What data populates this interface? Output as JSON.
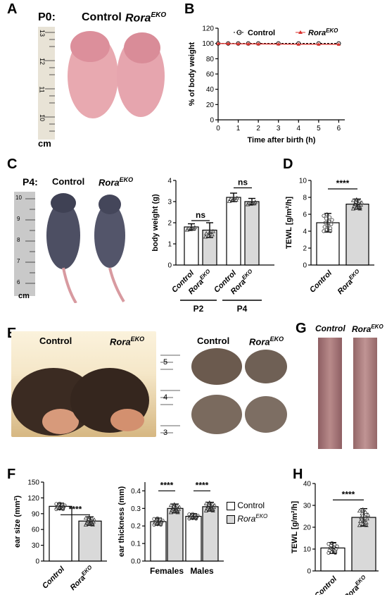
{
  "panel_labels": {
    "A": "A",
    "B": "B",
    "C": "C",
    "D": "D",
    "E": "E",
    "F": "F",
    "G": "G",
    "H": "H"
  },
  "panelA": {
    "stage": "P0:",
    "control": "Control",
    "rora": "Rora",
    "rora_sup": "EKO",
    "ruler_unit": "cm",
    "ruler_ticks": [
      "13",
      "12",
      "11",
      "10"
    ]
  },
  "panelC": {
    "stage": "P4:",
    "control": "Control",
    "rora": "Rora",
    "rora_sup": "EKO",
    "ruler_unit": "cm",
    "ruler_ticks": [
      "10",
      "9",
      "8",
      "7",
      "6"
    ]
  },
  "panelE": {
    "control_left": "Control",
    "rora_left": "Rora",
    "rora_sup": "EKO",
    "control_right": "Control",
    "rora_right": "Rora",
    "ruler_ticks": [
      "5",
      "4",
      "3"
    ]
  },
  "panelG": {
    "control": "Control",
    "rora": "Rora",
    "rora_sup": "EKO"
  },
  "legendF": {
    "control": "Control",
    "rora": "Rora",
    "rora_sup": "EKO"
  },
  "colors": {
    "control": "#ffffff",
    "rora": "#d9d9d9",
    "line_rora": "#d9302c",
    "text": "#000000"
  },
  "chart_data": [
    {
      "id": "B",
      "type": "line",
      "xlabel": "Time after birth (h)",
      "ylabel": "% of body weight",
      "xlim": [
        0,
        6.3
      ],
      "ylim": [
        0,
        120
      ],
      "xticks": [
        0,
        1,
        2,
        3,
        4,
        5,
        6
      ],
      "yticks": [
        0,
        20,
        40,
        60,
        80,
        100,
        120
      ],
      "series": [
        {
          "name": "Control",
          "x": [
            0,
            0.5,
            1,
            1.5,
            2,
            3,
            4,
            5,
            6
          ],
          "y": [
            100,
            100,
            100,
            100,
            100,
            100,
            100,
            100,
            100
          ]
        },
        {
          "name": "Rora",
          "name_sup": "EKO",
          "x": [
            0,
            0.5,
            1,
            1.5,
            2,
            3,
            4,
            5,
            6
          ],
          "y": [
            100,
            99.8,
            99.6,
            99.5,
            99.4,
            99.2,
            99,
            99,
            98.9
          ]
        }
      ]
    },
    {
      "id": "C",
      "type": "bar",
      "ylabel": "body weight (g)",
      "ylim": [
        0,
        4
      ],
      "yticks": [
        0,
        1,
        2,
        3,
        4
      ],
      "categories": [
        "Control",
        "Rora",
        "Control",
        "Rora"
      ],
      "category_sup": [
        "",
        "EKO",
        "",
        "EKO"
      ],
      "groups": [
        "P2",
        "P4"
      ],
      "values": [
        1.8,
        1.65,
        3.2,
        3.0
      ],
      "errors": [
        0.15,
        0.35,
        0.2,
        0.15
      ],
      "annotations": [
        "ns",
        "ns"
      ]
    },
    {
      "id": "D",
      "type": "bar",
      "ylabel": "TEWL [g/m²/h]",
      "ylim": [
        0,
        10
      ],
      "yticks": [
        0,
        2,
        4,
        6,
        8,
        10
      ],
      "categories": [
        "Control",
        "Rora"
      ],
      "category_sup": [
        "",
        "EKO"
      ],
      "values": [
        5.0,
        7.2
      ],
      "errors": [
        1.1,
        0.6
      ],
      "annotations": [
        "****"
      ]
    },
    {
      "id": "F1",
      "type": "bar",
      "ylabel": "ear size (mm²)",
      "ylim": [
        0,
        150
      ],
      "yticks": [
        0,
        30,
        60,
        90,
        120,
        150
      ],
      "categories": [
        "Control",
        "Rora"
      ],
      "category_sup": [
        "",
        "EKO"
      ],
      "values": [
        104,
        76
      ],
      "errors": [
        6,
        8
      ],
      "annotations": [
        "****"
      ]
    },
    {
      "id": "F2",
      "type": "bar",
      "ylabel": "ear thickness (mm)",
      "ylim": [
        0,
        0.45
      ],
      "yticks": [
        0.0,
        0.1,
        0.2,
        0.3,
        0.4
      ],
      "groups": [
        "Females",
        "Males"
      ],
      "series": [
        {
          "name": "Control",
          "values": [
            0.225,
            0.255
          ],
          "errors": [
            0.02,
            0.015
          ]
        },
        {
          "name": "Rora",
          "name_sup": "EKO",
          "values": [
            0.3,
            0.31
          ],
          "errors": [
            0.025,
            0.025
          ]
        }
      ],
      "annotations": [
        "****",
        "****"
      ]
    },
    {
      "id": "H",
      "type": "bar",
      "ylabel": "TEWL [g/m²/h]",
      "ylim": [
        0,
        40
      ],
      "yticks": [
        0,
        10,
        20,
        30,
        40
      ],
      "categories": [
        "Control",
        "Rora"
      ],
      "category_sup": [
        "",
        "EKO"
      ],
      "values": [
        10.5,
        24.5
      ],
      "errors": [
        2.5,
        4.0
      ],
      "annotations": [
        "****"
      ]
    }
  ]
}
